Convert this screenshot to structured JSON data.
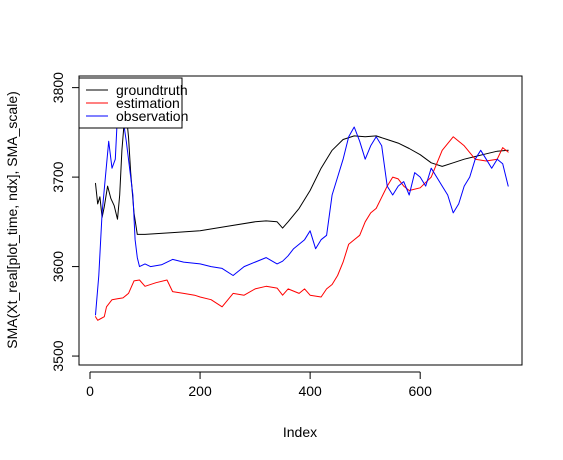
{
  "chart_data": {
    "type": "line",
    "title": "",
    "xlabel": "Index",
    "ylabel": "SMA(Xt_real[plot_time, ndx], SMA_scale)",
    "xlim": [
      -20,
      785
    ],
    "ylim": [
      3490,
      3813
    ],
    "xticks": [
      0,
      200,
      400,
      600
    ],
    "xtick_labels": [
      "0",
      "200",
      "400",
      "600"
    ],
    "yticks": [
      3500,
      3600,
      3700,
      3800
    ],
    "ytick_labels": [
      "3500",
      "3600",
      "3700",
      "3800"
    ],
    "grid": false,
    "legend": {
      "position": "top-left",
      "boxed": true
    },
    "series": [
      {
        "name": "groundtruth",
        "color": "#000000",
        "points": [
          [
            10,
            3693
          ],
          [
            14,
            3670
          ],
          [
            18,
            3678
          ],
          [
            22,
            3655
          ],
          [
            26,
            3667
          ],
          [
            32,
            3690
          ],
          [
            38,
            3676
          ],
          [
            44,
            3668
          ],
          [
            50,
            3653
          ],
          [
            54,
            3680
          ],
          [
            58,
            3730
          ],
          [
            62,
            3760
          ],
          [
            66,
            3770
          ],
          [
            70,
            3745
          ],
          [
            74,
            3705
          ],
          [
            80,
            3660
          ],
          [
            86,
            3636
          ],
          [
            100,
            3636
          ],
          [
            150,
            3638
          ],
          [
            200,
            3640
          ],
          [
            250,
            3645
          ],
          [
            300,
            3650
          ],
          [
            320,
            3651
          ],
          [
            340,
            3650
          ],
          [
            350,
            3643
          ],
          [
            360,
            3650
          ],
          [
            380,
            3665
          ],
          [
            400,
            3685
          ],
          [
            420,
            3710
          ],
          [
            440,
            3730
          ],
          [
            460,
            3742
          ],
          [
            480,
            3746
          ],
          [
            500,
            3745
          ],
          [
            520,
            3746
          ],
          [
            540,
            3742
          ],
          [
            560,
            3738
          ],
          [
            580,
            3732
          ],
          [
            600,
            3725
          ],
          [
            620,
            3716
          ],
          [
            640,
            3712
          ],
          [
            660,
            3716
          ],
          [
            680,
            3720
          ],
          [
            700,
            3723
          ],
          [
            720,
            3726
          ],
          [
            740,
            3729
          ],
          [
            760,
            3730
          ]
        ]
      },
      {
        "name": "estimation",
        "color": "#ff0000",
        "points": [
          [
            10,
            3544
          ],
          [
            14,
            3540
          ],
          [
            20,
            3542
          ],
          [
            26,
            3544
          ],
          [
            30,
            3555
          ],
          [
            40,
            3563
          ],
          [
            50,
            3564
          ],
          [
            60,
            3565
          ],
          [
            70,
            3570
          ],
          [
            80,
            3584
          ],
          [
            90,
            3585
          ],
          [
            100,
            3578
          ],
          [
            120,
            3582
          ],
          [
            140,
            3585
          ],
          [
            150,
            3572
          ],
          [
            170,
            3570
          ],
          [
            190,
            3568
          ],
          [
            200,
            3566
          ],
          [
            220,
            3563
          ],
          [
            240,
            3555
          ],
          [
            260,
            3570
          ],
          [
            280,
            3568
          ],
          [
            300,
            3575
          ],
          [
            320,
            3578
          ],
          [
            340,
            3576
          ],
          [
            350,
            3568
          ],
          [
            360,
            3575
          ],
          [
            380,
            3570
          ],
          [
            390,
            3575
          ],
          [
            400,
            3568
          ],
          [
            420,
            3566
          ],
          [
            430,
            3575
          ],
          [
            440,
            3580
          ],
          [
            450,
            3590
          ],
          [
            460,
            3605
          ],
          [
            470,
            3625
          ],
          [
            480,
            3630
          ],
          [
            490,
            3635
          ],
          [
            500,
            3650
          ],
          [
            510,
            3660
          ],
          [
            520,
            3665
          ],
          [
            540,
            3690
          ],
          [
            550,
            3700
          ],
          [
            560,
            3698
          ],
          [
            570,
            3690
          ],
          [
            580,
            3685
          ],
          [
            600,
            3688
          ],
          [
            620,
            3700
          ],
          [
            640,
            3730
          ],
          [
            660,
            3745
          ],
          [
            680,
            3735
          ],
          [
            700,
            3720
          ],
          [
            720,
            3718
          ],
          [
            740,
            3720
          ],
          [
            750,
            3733
          ],
          [
            760,
            3728
          ]
        ]
      },
      {
        "name": "observation",
        "color": "#0000ff",
        "points": [
          [
            10,
            3546
          ],
          [
            16,
            3590
          ],
          [
            22,
            3660
          ],
          [
            28,
            3700
          ],
          [
            34,
            3740
          ],
          [
            40,
            3710
          ],
          [
            46,
            3720
          ],
          [
            50,
            3770
          ],
          [
            55,
            3755
          ],
          [
            60,
            3765
          ],
          [
            66,
            3740
          ],
          [
            72,
            3710
          ],
          [
            78,
            3680
          ],
          [
            82,
            3630
          ],
          [
            86,
            3610
          ],
          [
            90,
            3600
          ],
          [
            100,
            3603
          ],
          [
            110,
            3600
          ],
          [
            130,
            3602
          ],
          [
            150,
            3608
          ],
          [
            170,
            3605
          ],
          [
            200,
            3603
          ],
          [
            220,
            3600
          ],
          [
            240,
            3598
          ],
          [
            260,
            3590
          ],
          [
            280,
            3600
          ],
          [
            300,
            3605
          ],
          [
            320,
            3610
          ],
          [
            340,
            3603
          ],
          [
            350,
            3606
          ],
          [
            360,
            3612
          ],
          [
            370,
            3620
          ],
          [
            380,
            3625
          ],
          [
            390,
            3630
          ],
          [
            400,
            3640
          ],
          [
            410,
            3620
          ],
          [
            420,
            3630
          ],
          [
            430,
            3635
          ],
          [
            440,
            3680
          ],
          [
            450,
            3700
          ],
          [
            460,
            3720
          ],
          [
            470,
            3745
          ],
          [
            480,
            3756
          ],
          [
            490,
            3740
          ],
          [
            500,
            3720
          ],
          [
            510,
            3735
          ],
          [
            520,
            3745
          ],
          [
            530,
            3735
          ],
          [
            540,
            3690
          ],
          [
            550,
            3680
          ],
          [
            560,
            3690
          ],
          [
            570,
            3695
          ],
          [
            580,
            3680
          ],
          [
            590,
            3705
          ],
          [
            600,
            3700
          ],
          [
            610,
            3690
          ],
          [
            620,
            3710
          ],
          [
            630,
            3700
          ],
          [
            640,
            3690
          ],
          [
            650,
            3680
          ],
          [
            660,
            3660
          ],
          [
            670,
            3670
          ],
          [
            680,
            3690
          ],
          [
            690,
            3700
          ],
          [
            700,
            3720
          ],
          [
            710,
            3730
          ],
          [
            720,
            3720
          ],
          [
            730,
            3710
          ],
          [
            740,
            3720
          ],
          [
            750,
            3715
          ],
          [
            760,
            3690
          ]
        ]
      }
    ]
  }
}
